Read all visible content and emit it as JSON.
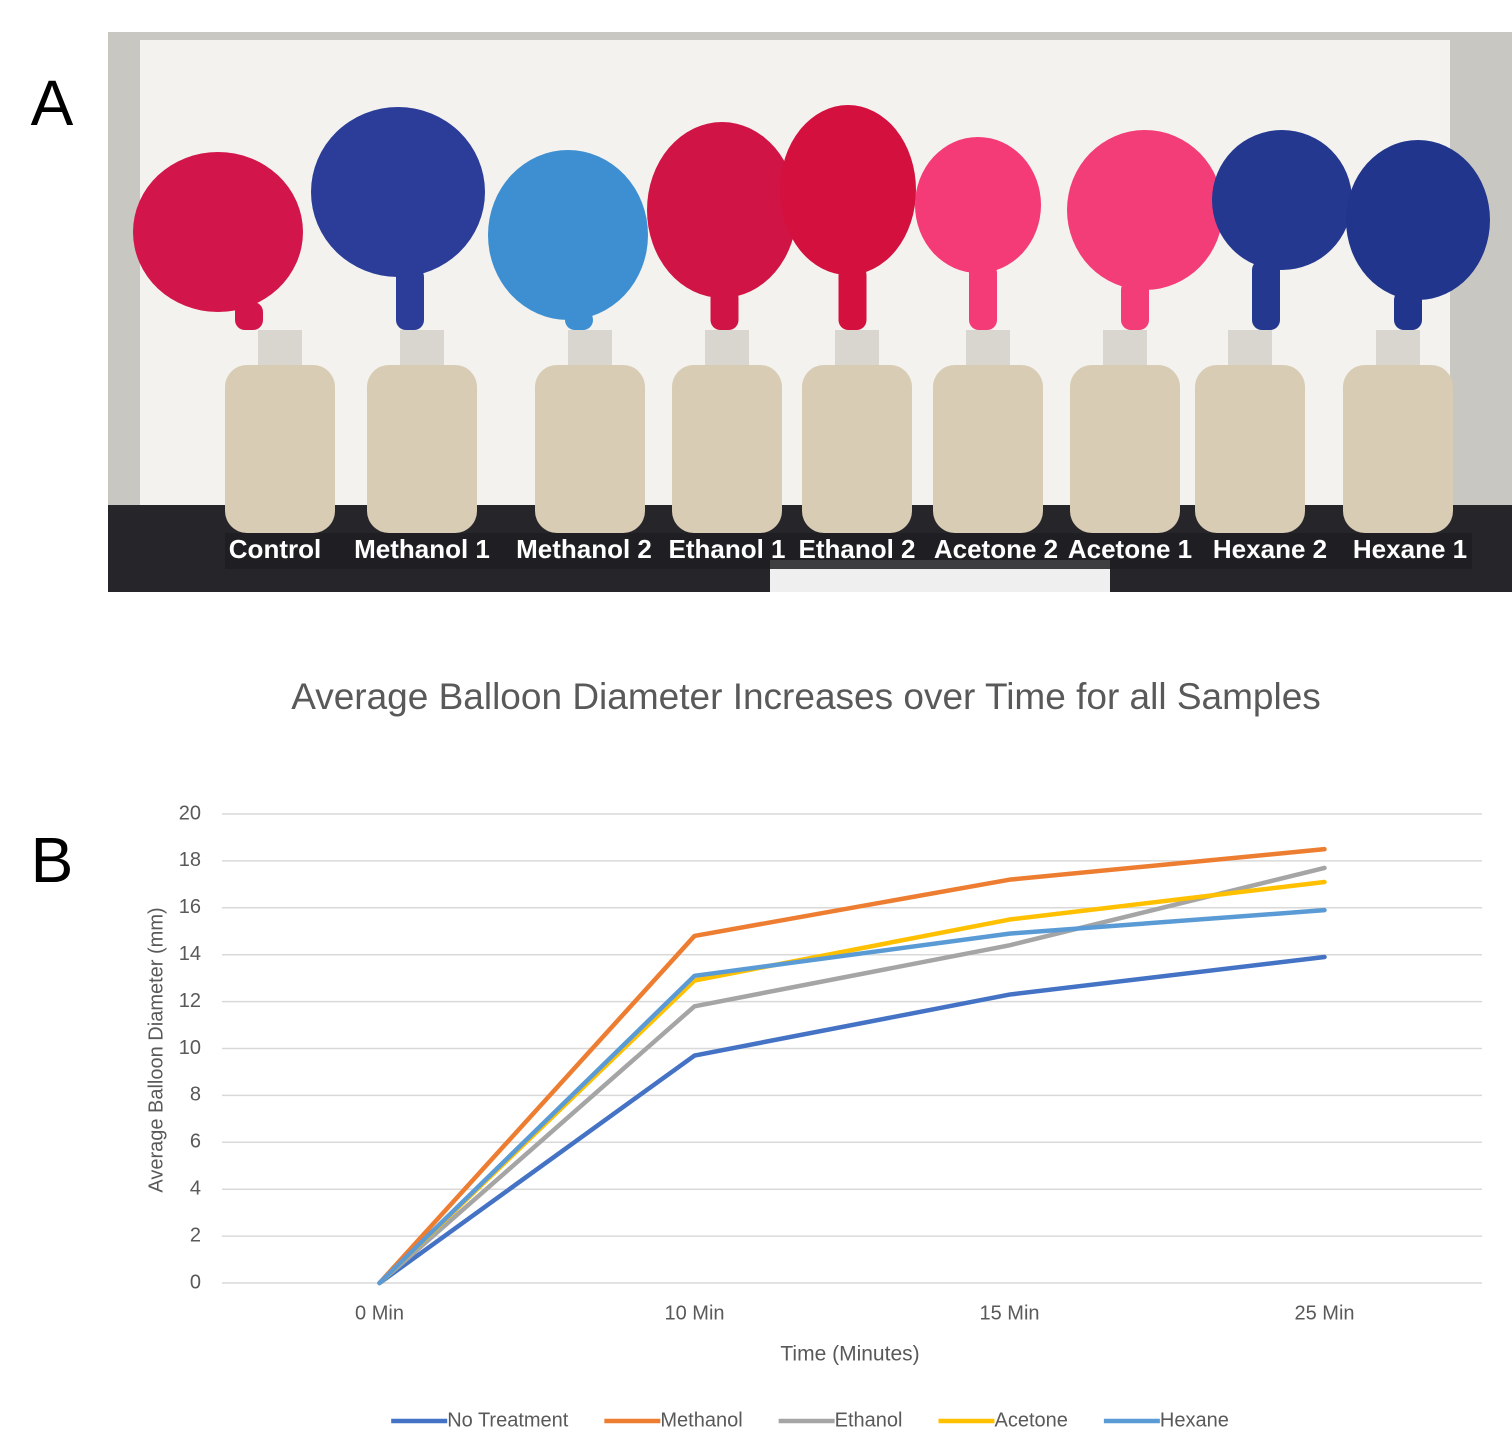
{
  "panel_labels": [
    "A",
    "B"
  ],
  "photo": {
    "labels": [
      "Control",
      "Methanol 1",
      "Methanol 2",
      "Ethanol 1",
      "Ethanol 2",
      "Acetone 2",
      "Acetone 1",
      "Hexane 2",
      "Hexane 1"
    ]
  },
  "chart_data": {
    "type": "line",
    "title": "Average Balloon Diameter Increases over Time for all Samples",
    "x_label": "Time (Minutes)",
    "y_label": "Average Balloon Diameter (mm)",
    "categories": [
      "0 Min",
      "10 Min",
      "15 Min",
      "25 Min"
    ],
    "series": [
      {
        "name": "No Treatment",
        "color": "#4472c4",
        "values": [
          0,
          9.7,
          12.3,
          13.9
        ]
      },
      {
        "name": "Methanol",
        "color": "#ed7d31",
        "values": [
          0,
          14.8,
          17.2,
          18.5
        ]
      },
      {
        "name": "Ethanol",
        "color": "#a5a5a5",
        "values": [
          0,
          11.8,
          14.4,
          17.7
        ]
      },
      {
        "name": "Acetone",
        "color": "#ffc000",
        "values": [
          0,
          12.9,
          15.5,
          17.1
        ]
      },
      {
        "name": "Hexane",
        "color": "#5b9bd5",
        "values": [
          0,
          13.1,
          14.9,
          15.9
        ]
      }
    ],
    "ylim": [
      0,
      20
    ],
    "yticks": [
      0,
      2,
      4,
      6,
      8,
      10,
      12,
      14,
      16,
      18,
      20
    ],
    "grid": true,
    "legend": "bottom"
  }
}
